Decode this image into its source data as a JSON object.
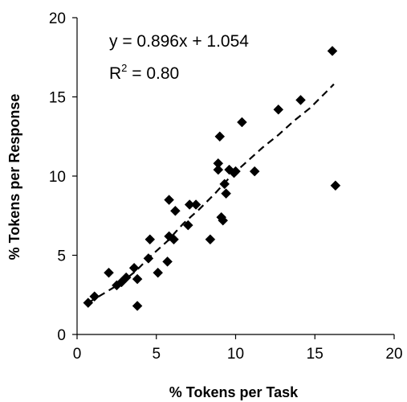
{
  "chart_data": {
    "type": "scatter",
    "title": "",
    "xlabel": "% Tokens per Task",
    "ylabel": "% Tokens per Response",
    "xlim": [
      0,
      20
    ],
    "ylim": [
      0,
      20
    ],
    "x_ticks": [
      "0",
      "5",
      "10",
      "15",
      "20"
    ],
    "y_ticks": [
      "0",
      "5",
      "10",
      "15",
      "20"
    ],
    "grid": false,
    "legend": "none",
    "marker": "diamond",
    "marker_color": "#000000",
    "trendline": {
      "style": "dashed",
      "equation_text": "y = 0.896x + 1.054",
      "r2_prefix": "R",
      "r2_exponent": "2",
      "r2_suffix": " = 0.80",
      "points_x": [
        0.7,
        1.7,
        2.7,
        3.7,
        4.7,
        5.7,
        6.7,
        7.7,
        8.7,
        9.7,
        10.7,
        11.7,
        12.7,
        13.7,
        14.7,
        15.7,
        16.2
      ],
      "points_y": [
        2.0,
        2.6,
        3.2,
        4.0,
        5.0,
        5.9,
        7.0,
        7.9,
        8.9,
        10.0,
        10.9,
        11.8,
        12.6,
        13.5,
        14.3,
        15.3,
        15.8
      ]
    },
    "series": [
      {
        "x": [
          0.7,
          1.1,
          2.0,
          2.5,
          2.8,
          3.1,
          3.6,
          3.8,
          3.8,
          4.5,
          4.6,
          5.1,
          5.7,
          5.8,
          5.8,
          6.1,
          6.2,
          7.0,
          7.1,
          7.5,
          8.4,
          8.9,
          8.9,
          9.0,
          9.1,
          9.2,
          9.3,
          9.4,
          9.6,
          9.9,
          10.0,
          10.4,
          11.2,
          12.7,
          14.1,
          16.1,
          16.3
        ],
        "y": [
          2.0,
          2.4,
          3.9,
          3.1,
          3.3,
          3.6,
          4.2,
          3.5,
          1.8,
          4.8,
          6.0,
          3.9,
          4.6,
          6.2,
          8.5,
          6.0,
          7.8,
          6.9,
          8.2,
          8.2,
          6.0,
          10.8,
          10.4,
          12.5,
          7.4,
          7.2,
          9.5,
          8.9,
          10.4,
          10.2,
          10.3,
          13.4,
          10.3,
          14.2,
          14.8,
          17.9,
          9.4
        ]
      }
    ]
  }
}
